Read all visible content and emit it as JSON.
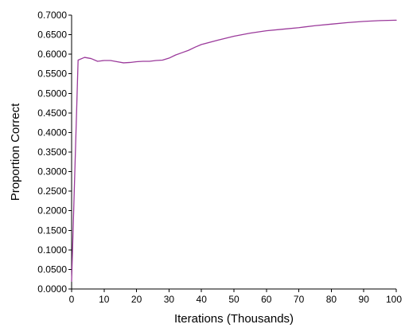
{
  "chart_data": {
    "type": "line",
    "xlabel": "Iterations (Thousands)",
    "ylabel": "Proportion Correct",
    "xlim": [
      0,
      100
    ],
    "ylim": [
      0,
      0.7
    ],
    "x_ticks": [
      0,
      10,
      20,
      30,
      40,
      50,
      60,
      70,
      80,
      90,
      100
    ],
    "y_ticks": [
      0.0,
      0.05,
      0.1,
      0.15,
      0.2,
      0.25,
      0.3,
      0.35,
      0.4,
      0.45,
      0.5,
      0.55,
      0.6,
      0.65,
      0.7
    ],
    "x_tick_labels": [
      "0",
      "10",
      "20",
      "30",
      "40",
      "50",
      "60",
      "70",
      "80",
      "90",
      "100"
    ],
    "y_tick_labels": [
      "0.0000",
      "0.0500",
      "0.1000",
      "0.1500",
      "0.2000",
      "0.2500",
      "0.3000",
      "0.3500",
      "0.4000",
      "0.4500",
      "0.5000",
      "0.5500",
      "0.6000",
      "0.6500",
      "0.7000"
    ],
    "grid": false,
    "legend": "none",
    "series": [
      {
        "color": "#9b3a9b",
        "x": [
          0,
          2,
          4,
          6,
          8,
          10,
          12,
          14,
          16,
          18,
          20,
          22,
          24,
          26,
          28,
          30,
          32,
          34,
          36,
          38,
          40,
          45,
          50,
          55,
          60,
          65,
          70,
          75,
          80,
          85,
          90,
          95,
          100
        ],
        "y": [
          0.02,
          0.585,
          0.592,
          0.589,
          0.582,
          0.584,
          0.584,
          0.581,
          0.578,
          0.579,
          0.581,
          0.582,
          0.582,
          0.584,
          0.585,
          0.59,
          0.598,
          0.604,
          0.61,
          0.618,
          0.625,
          0.636,
          0.646,
          0.654,
          0.66,
          0.664,
          0.668,
          0.673,
          0.677,
          0.681,
          0.684,
          0.686,
          0.687
        ]
      }
    ]
  }
}
